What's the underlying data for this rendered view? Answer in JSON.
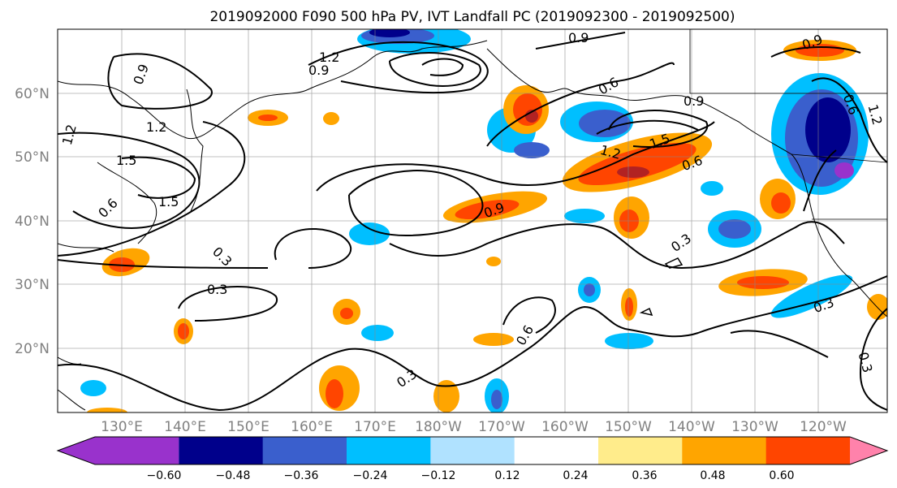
{
  "title": "2019092000 F090 500 hPa PV, IVT Landfall PC (2019092300 - 2019092500)",
  "map": {
    "lon_labels": [
      "130°E",
      "140°E",
      "150°E",
      "160°E",
      "170°E",
      "180°W",
      "170°W",
      "160°W",
      "150°W",
      "140°W",
      "130°W",
      "120°W"
    ],
    "lat_labels": [
      "60°N",
      "50°N",
      "40°N",
      "30°N",
      "20°N"
    ],
    "contour_labels": [
      "0.9",
      "1.2",
      "0.9",
      "0.9",
      "1.2",
      "1.2",
      "1.5",
      "0.6",
      "1.5",
      "0.6",
      "0.3",
      "0.3",
      "0.9",
      "0.6",
      "0.9",
      "1.2",
      "1.5",
      "0.6",
      "0.3",
      "0.3",
      "0.3",
      "0.3",
      "0.6",
      "0.9",
      "1.2"
    ]
  },
  "colorbar": {
    "colors": [
      "#9932CC",
      "#00008B",
      "#3A5FCD",
      "#00BFFF",
      "#B0E2FF",
      "#FFFFFF",
      "#FFEC8B",
      "#FFA500",
      "#FF4500",
      "#B22222",
      "#FF82AB"
    ],
    "tick_labels": [
      "−0.60",
      "−0.48",
      "−0.36",
      "−0.24",
      "−0.12",
      "0.12",
      "0.24",
      "0.36",
      "0.48",
      "0.60"
    ]
  }
}
